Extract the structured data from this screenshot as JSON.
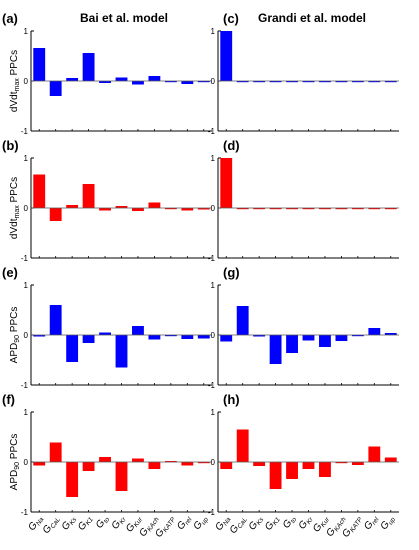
{
  "column_titles": [
    "Bai et al. model",
    "Grandi et al. model"
  ],
  "panel_labels": [
    "(a)",
    "(b)",
    "(c)",
    "(d)",
    "(e)",
    "(f)",
    "(g)",
    "(h)"
  ],
  "y_labels": [
    {
      "main": "dVdt",
      "sub": "max",
      "suffix": " PPCs"
    },
    {
      "main": "dVdt",
      "sub": "max",
      "suffix": " PPCs"
    },
    {
      "main": "APD",
      "sub": "90",
      "suffix": " PPCs"
    },
    {
      "main": "APD",
      "sub": "90",
      "suffix": " PPCs"
    }
  ],
  "categories": [
    {
      "main": "G",
      "sub": "Na"
    },
    {
      "main": "G",
      "sub": "CaL"
    },
    {
      "main": "G",
      "sub": "Ks"
    },
    {
      "main": "G",
      "sub": "K1"
    },
    {
      "main": "G",
      "sub": "to"
    },
    {
      "main": "G",
      "sub": "Kr"
    },
    {
      "main": "G",
      "sub": "Kur"
    },
    {
      "main": "G",
      "sub": "KAch"
    },
    {
      "main": "G",
      "sub": "KATP"
    },
    {
      "main": "G",
      "sub": "rel"
    },
    {
      "main": "G",
      "sub": "up"
    }
  ],
  "colors": {
    "blue": "#0000ff",
    "red": "#ff0000",
    "axis": "#000000"
  },
  "chart_data": [
    {
      "type": "bar",
      "panel": "(a)",
      "model": "Bai et al. model",
      "color": "blue",
      "ylim": [
        -1,
        1
      ],
      "yticks": [
        "-1",
        "0",
        "1"
      ],
      "values": [
        0.66,
        -0.3,
        0.06,
        0.56,
        -0.04,
        0.07,
        -0.07,
        0.1,
        -0.02,
        -0.06,
        -0.02
      ]
    },
    {
      "type": "bar",
      "panel": "(b)",
      "model": "Bai et al. model",
      "color": "red",
      "ylim": [
        -1,
        1
      ],
      "yticks": [
        "-1",
        "0",
        "1"
      ],
      "values": [
        0.67,
        -0.26,
        0.06,
        0.48,
        -0.05,
        0.04,
        -0.06,
        0.11,
        -0.02,
        -0.05,
        -0.03
      ]
    },
    {
      "type": "bar",
      "panel": "(c)",
      "model": "Grandi et al. model",
      "color": "blue",
      "ylim": [
        -1,
        1
      ],
      "yticks": [
        "-1",
        "0",
        "1"
      ],
      "values": [
        1.0,
        -0.01,
        -0.01,
        -0.01,
        -0.01,
        -0.01,
        -0.01,
        -0.01,
        -0.01,
        -0.01,
        -0.01
      ]
    },
    {
      "type": "bar",
      "panel": "(d)",
      "model": "Grandi et al. model",
      "color": "red",
      "ylim": [
        -1,
        1
      ],
      "yticks": [
        "-1",
        "0",
        "1"
      ],
      "values": [
        1.0,
        -0.01,
        -0.01,
        -0.01,
        -0.01,
        -0.01,
        -0.01,
        -0.01,
        -0.01,
        -0.01,
        -0.02
      ]
    },
    {
      "type": "bar",
      "panel": "(e)",
      "model": "Bai et al. model",
      "color": "blue",
      "ylim": [
        -1,
        1
      ],
      "yticks": [
        "-1",
        "0",
        "1"
      ],
      "values": [
        -0.03,
        0.6,
        -0.54,
        -0.16,
        0.05,
        -0.65,
        0.18,
        -0.09,
        -0.01,
        -0.08,
        -0.07
      ]
    },
    {
      "type": "bar",
      "panel": "(f)",
      "model": "Bai et al. model",
      "color": "red",
      "ylim": [
        -1,
        1
      ],
      "yticks": [
        "-1",
        "0",
        "1"
      ],
      "values": [
        -0.07,
        0.39,
        -0.7,
        -0.18,
        0.1,
        -0.58,
        0.07,
        -0.14,
        0.02,
        -0.07,
        -0.02
      ]
    },
    {
      "type": "bar",
      "panel": "(g)",
      "model": "Grandi et al. model",
      "color": "blue",
      "ylim": [
        -1,
        1
      ],
      "yticks": [
        "-1",
        "0",
        "1"
      ],
      "values": [
        -0.13,
        0.58,
        -0.03,
        -0.58,
        -0.36,
        -0.11,
        -0.24,
        -0.12,
        -0.02,
        0.14,
        0.04
      ]
    },
    {
      "type": "bar",
      "panel": "(h)",
      "model": "Grandi et al. model",
      "color": "red",
      "ylim": [
        -1,
        1
      ],
      "yticks": [
        "-1",
        "0",
        "1"
      ],
      "values": [
        -0.14,
        0.65,
        -0.08,
        -0.54,
        -0.34,
        -0.14,
        -0.3,
        -0.02,
        -0.06,
        0.31,
        0.09
      ]
    }
  ]
}
